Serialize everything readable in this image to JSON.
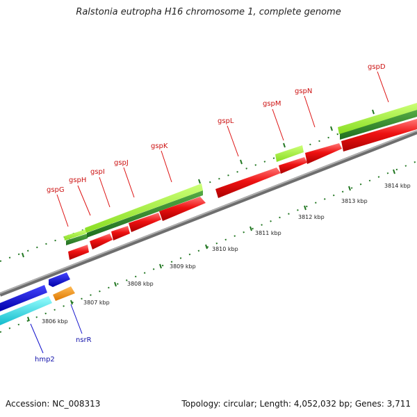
{
  "title": "Ralstonia eutropha H16 chromosome 1, complete genome",
  "footer": {
    "accession": "Accession: NC_008313",
    "meta": "Topology: circular; Length: 4,052,032 bp; Genes: 3,711"
  },
  "colors": {
    "backbone": "#8c8c8c",
    "cds_forward": "#ee1111",
    "cds_forward_light": "#ff6666",
    "gene_bar": "#2e8b2e",
    "gene_bar_light": "#99ee33",
    "blue_gene": "#1111dd",
    "cyan_gene": "#22dddd",
    "orange_gene": "#ee8811",
    "label_red": "#cc1111",
    "label_blue": "#1111aa",
    "tick": "#227722"
  },
  "scale": {
    "unit": "kbp",
    "labels": [
      "3806 kbp",
      "3807 kbp",
      "3808 kbp",
      "3809 kbp",
      "3810 kbp",
      "3811 kbp",
      "3812 kbp",
      "3813 kbp",
      "3814 kbp"
    ]
  },
  "genes_red": [
    "gspG",
    "gspH",
    "gspI",
    "gspJ",
    "gspK",
    "gspL",
    "gspM",
    "gspN",
    "gspD"
  ],
  "genes_blue": [
    "hmp2",
    "nsrR"
  ]
}
